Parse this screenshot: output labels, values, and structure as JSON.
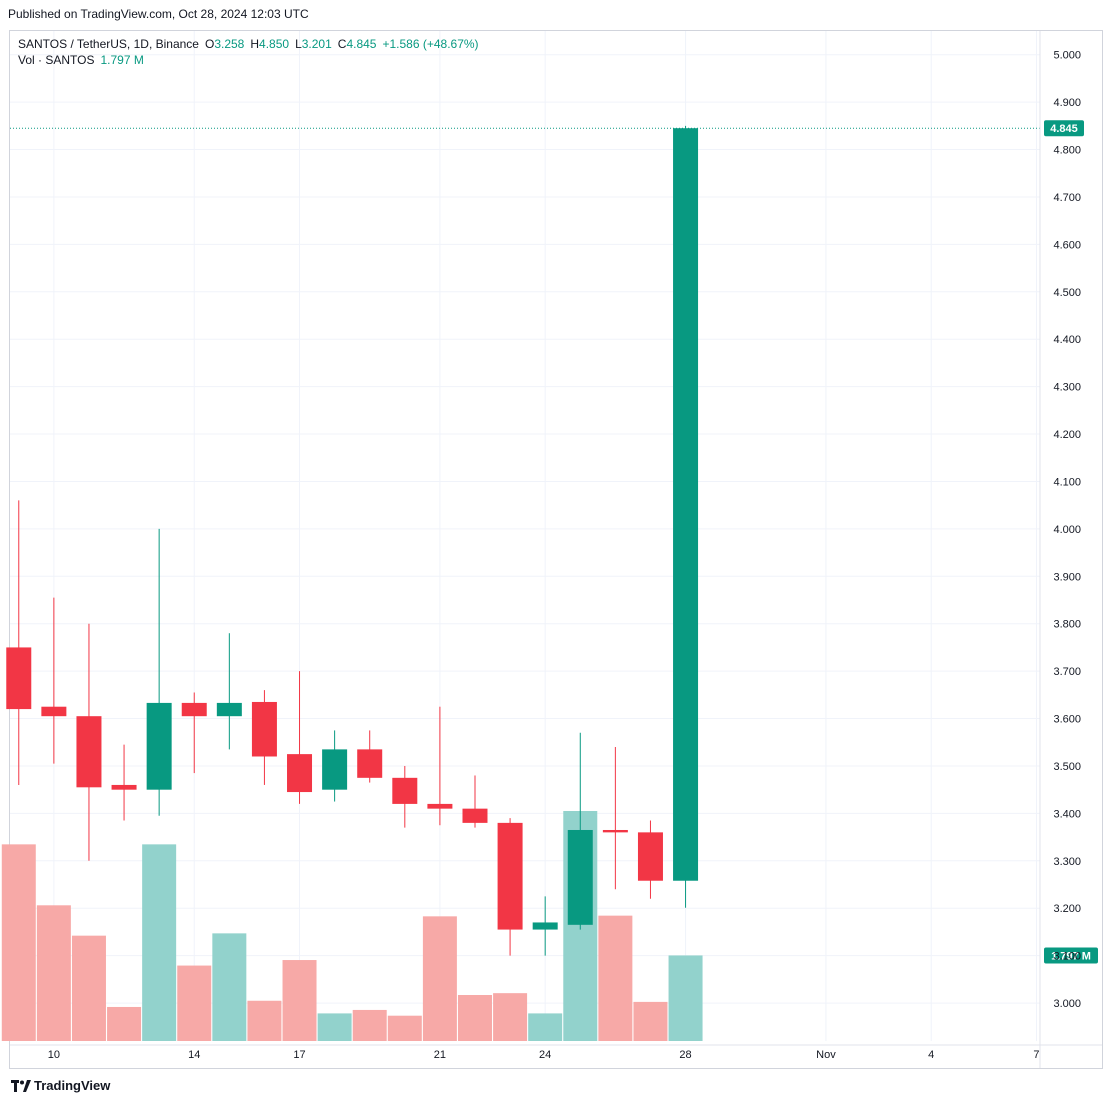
{
  "header": {
    "published_text": "Published on TradingView.com, Oct 28, 2024 12:03 UTC"
  },
  "legend": {
    "symbol": "SANTOS / TetherUS, 1D, Binance",
    "open_label": "O",
    "open_value": "3.258",
    "high_label": "H",
    "high_value": "4.850",
    "low_label": "L",
    "low_value": "3.201",
    "close_label": "C",
    "close_value": "4.845",
    "change": "+1.586 (+48.67%)",
    "volume_label": "Vol · SANTOS",
    "volume_value": "1.797 M"
  },
  "footer": {
    "brand": "TradingView"
  },
  "colors": {
    "up": "#089981",
    "down": "#f23645",
    "volume_up": "#92d2cc",
    "volume_down": "#f7a9a7",
    "grid": "#f0f3fa",
    "axis_text": "#131722"
  },
  "chart_data": {
    "type": "candlestick",
    "y_axis_ticks": [
      "3.000",
      "3.100",
      "3.200",
      "3.300",
      "3.400",
      "3.500",
      "3.600",
      "3.700",
      "3.800",
      "3.900",
      "4.000",
      "4.100",
      "4.200",
      "4.300",
      "4.400",
      "4.500",
      "4.600",
      "4.700",
      "4.800",
      "4.900",
      "5.000"
    ],
    "ylim": [
      2.92,
      5.05
    ],
    "x_axis_ticks": [
      {
        "label": "10",
        "day": 10
      },
      {
        "label": "14",
        "day": 14
      },
      {
        "label": "17",
        "day": 17
      },
      {
        "label": "21",
        "day": 21
      },
      {
        "label": "24",
        "day": 24
      },
      {
        "label": "28",
        "day": 28
      },
      {
        "label": "Nov",
        "day": 32
      },
      {
        "label": "4",
        "day": 35
      },
      {
        "label": "7",
        "day": 38
      }
    ],
    "x_range_days": [
      8.75,
      38.1
    ],
    "last_price_label": "4.845",
    "last_volume_label": "1.797 M",
    "last_price": 4.845,
    "candles": [
      {
        "date": "Oct 9",
        "day": 9,
        "open": 3.75,
        "high": 4.06,
        "low": 3.46,
        "close": 3.62,
        "volume_height": 0.855,
        "dir": "down"
      },
      {
        "date": "Oct 10",
        "day": 10,
        "open": 3.625,
        "high": 3.855,
        "low": 3.505,
        "close": 3.605,
        "volume_height": 0.59,
        "dir": "down"
      },
      {
        "date": "Oct 11",
        "day": 11,
        "open": 3.605,
        "high": 3.8,
        "low": 3.3,
        "close": 3.455,
        "volume_height": 0.458,
        "dir": "down"
      },
      {
        "date": "Oct 12",
        "day": 12,
        "open": 3.46,
        "high": 3.545,
        "low": 3.385,
        "close": 3.45,
        "volume_height": 0.148,
        "dir": "down"
      },
      {
        "date": "Oct 13",
        "day": 13,
        "open": 3.45,
        "high": 4.0,
        "low": 3.395,
        "close": 3.633,
        "volume_height": 0.855,
        "dir": "up"
      },
      {
        "date": "Oct 14",
        "day": 14,
        "open": 3.633,
        "high": 3.655,
        "low": 3.485,
        "close": 3.605,
        "volume_height": 0.328,
        "dir": "down"
      },
      {
        "date": "Oct 15",
        "day": 15,
        "open": 3.605,
        "high": 3.78,
        "low": 3.535,
        "close": 3.633,
        "volume_height": 0.468,
        "dir": "up"
      },
      {
        "date": "Oct 16",
        "day": 16,
        "open": 3.635,
        "high": 3.66,
        "low": 3.46,
        "close": 3.52,
        "volume_height": 0.175,
        "dir": "down"
      },
      {
        "date": "Oct 17",
        "day": 17,
        "open": 3.525,
        "high": 3.7,
        "low": 3.42,
        "close": 3.445,
        "volume_height": 0.352,
        "dir": "down"
      },
      {
        "date": "Oct 18",
        "day": 18,
        "open": 3.45,
        "high": 3.575,
        "low": 3.425,
        "close": 3.535,
        "volume_height": 0.12,
        "dir": "up"
      },
      {
        "date": "Oct 19",
        "day": 19,
        "open": 3.535,
        "high": 3.575,
        "low": 3.465,
        "close": 3.475,
        "volume_height": 0.135,
        "dir": "down"
      },
      {
        "date": "Oct 20",
        "day": 20,
        "open": 3.475,
        "high": 3.5,
        "low": 3.37,
        "close": 3.42,
        "volume_height": 0.11,
        "dir": "down"
      },
      {
        "date": "Oct 21",
        "day": 21,
        "open": 3.42,
        "high": 3.625,
        "low": 3.375,
        "close": 3.41,
        "volume_height": 0.542,
        "dir": "down"
      },
      {
        "date": "Oct 22",
        "day": 22,
        "open": 3.41,
        "high": 3.48,
        "low": 3.37,
        "close": 3.38,
        "volume_height": 0.2,
        "dir": "down"
      },
      {
        "date": "Oct 23",
        "day": 23,
        "open": 3.38,
        "high": 3.39,
        "low": 3.1,
        "close": 3.155,
        "volume_height": 0.208,
        "dir": "down"
      },
      {
        "date": "Oct 24",
        "day": 24,
        "open": 3.155,
        "high": 3.225,
        "low": 3.1,
        "close": 3.17,
        "volume_height": 0.12,
        "dir": "up"
      },
      {
        "date": "Oct 25",
        "day": 25,
        "open": 3.165,
        "high": 3.57,
        "low": 3.155,
        "close": 3.365,
        "volume_height": 1.0,
        "dir": "up"
      },
      {
        "date": "Oct 26",
        "day": 26,
        "open": 3.365,
        "high": 3.54,
        "low": 3.24,
        "close": 3.36,
        "volume_height": 0.545,
        "dir": "down"
      },
      {
        "date": "Oct 27",
        "day": 27,
        "open": 3.36,
        "high": 3.385,
        "low": 3.22,
        "close": 3.258,
        "volume_height": 0.17,
        "dir": "down"
      },
      {
        "date": "Oct 28",
        "day": 28,
        "open": 3.258,
        "high": 4.85,
        "low": 3.201,
        "close": 4.845,
        "volume_height": 0.372,
        "dir": "up"
      }
    ]
  }
}
